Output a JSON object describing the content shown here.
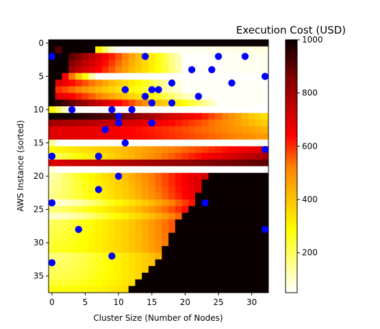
{
  "chart_data": {
    "type": "heatmap",
    "title": "Execution Cost (USD)",
    "xlabel": "Cluster Size (Number of Nodes)",
    "ylabel": "AWS Instance (sorted)",
    "x_range": [
      -0.5,
      32.5
    ],
    "y_range": [
      37.5,
      -0.5
    ],
    "n_cols": 33,
    "n_rows": 38,
    "x_ticks": [
      0,
      5,
      10,
      15,
      20,
      25,
      30
    ],
    "y_ticks": [
      0,
      5,
      10,
      15,
      20,
      25,
      30,
      35
    ],
    "colormap": "hot_r",
    "colorbar": {
      "min": 50,
      "max": 1000,
      "ticks": [
        200,
        400,
        600,
        800,
        1000
      ]
    },
    "grid": false,
    "rows": [
      {
        "start": 0,
        "end": 0,
        "vStart": 1000,
        "vEnd": 1000,
        "nan": [
          0,
          1,
          2,
          3,
          4,
          5,
          6,
          7,
          8,
          9
        ]
      },
      {
        "start": 0,
        "end": 10,
        "vStart": 1000,
        "vEnd": 120,
        "nan": [
          2,
          3,
          4,
          5,
          6
        ]
      },
      {
        "start": 3,
        "end": 20,
        "vStart": 900,
        "vEnd": 140,
        "nan": []
      },
      {
        "start": 3,
        "end": 20,
        "vStart": 850,
        "vEnd": 150,
        "nan": []
      },
      {
        "start": 3,
        "end": 20,
        "vStart": 800,
        "vEnd": 160,
        "nan": []
      },
      {
        "start": 2,
        "end": 8,
        "vStart": 650,
        "vEnd": 50,
        "nan": []
      },
      {
        "start": 1,
        "end": 20,
        "vStart": 700,
        "vEnd": 100,
        "nan": []
      },
      {
        "start": 1,
        "end": 20,
        "vStart": 600,
        "vEnd": 110,
        "nan": []
      },
      {
        "start": 1,
        "end": 22,
        "vStart": 700,
        "vEnd": 120,
        "nan": []
      },
      {
        "start": 0,
        "end": 25,
        "vStart": 1000,
        "vEnd": 140,
        "nan": []
      },
      {
        "start": 0,
        "end": 4,
        "vStart": 300,
        "vEnd": 50,
        "nan": []
      },
      {
        "start": 0,
        "end": 33,
        "vStart": 1000,
        "vEnd": 350,
        "nan": []
      },
      {
        "start": 0,
        "end": 33,
        "vStart": 800,
        "vEnd": 400,
        "nan": []
      },
      {
        "start": 0,
        "end": 33,
        "vStart": 700,
        "vEnd": 450,
        "nan": []
      },
      {
        "start": 0,
        "end": 33,
        "vStart": 700,
        "vEnd": 480,
        "nan": []
      },
      {
        "start": 0,
        "end": 2,
        "vStart": 180,
        "vEnd": 50,
        "nan": []
      },
      {
        "start": 0,
        "end": 33,
        "vStart": 300,
        "vEnd": 700,
        "nan": []
      },
      {
        "start": 0,
        "end": 33,
        "vStart": 200,
        "vEnd": 800,
        "nan": []
      },
      {
        "start": 0,
        "end": 33,
        "vStart": 700,
        "vEnd": 900,
        "nan": []
      },
      {
        "start": 0,
        "end": 2,
        "vStart": 100,
        "vEnd": 50,
        "nan": []
      },
      {
        "start": 0,
        "end": 33,
        "vStart": 160,
        "vEnd": 950,
        "nan": []
      },
      {
        "start": 0,
        "end": 33,
        "vStart": 170,
        "vEnd": 1000,
        "nan": []
      },
      {
        "start": 0,
        "end": 33,
        "vStart": 180,
        "vEnd": 1000,
        "nan": []
      },
      {
        "start": 0,
        "end": 33,
        "vStart": 190,
        "vEnd": 1000,
        "nan": []
      },
      {
        "start": 0,
        "end": 33,
        "vStart": 100,
        "vEnd": 1000,
        "nan": []
      },
      {
        "start": 0,
        "end": 33,
        "vStart": 200,
        "vEnd": 1000,
        "nan": []
      },
      {
        "start": 0,
        "end": 33,
        "vStart": 120,
        "vEnd": 1000,
        "nan": []
      },
      {
        "start": 0,
        "end": 33,
        "vStart": 220,
        "vEnd": 1000,
        "nan": []
      },
      {
        "start": 0,
        "end": 33,
        "vStart": 230,
        "vEnd": 1000,
        "nan": []
      },
      {
        "start": 0,
        "end": 33,
        "vStart": 240,
        "vEnd": 1000,
        "nan": []
      },
      {
        "start": 0,
        "end": 33,
        "vStart": 250,
        "vEnd": 1000,
        "nan": []
      },
      {
        "start": 0,
        "end": 33,
        "vStart": 260,
        "vEnd": 1000,
        "nan": []
      },
      {
        "start": 0,
        "end": 33,
        "vStart": 200,
        "vEnd": 1000,
        "nan": []
      },
      {
        "start": 0,
        "end": 33,
        "vStart": 210,
        "vEnd": 1000,
        "nan": []
      },
      {
        "start": 0,
        "end": 33,
        "vStart": 220,
        "vEnd": 1000,
        "nan": []
      },
      {
        "start": 0,
        "end": 33,
        "vStart": 230,
        "vEnd": 1000,
        "nan": []
      },
      {
        "start": 0,
        "end": 33,
        "vStart": 250,
        "vEnd": 1000,
        "nan": []
      },
      {
        "start": 0,
        "end": 33,
        "vStart": 280,
        "vEnd": 1000,
        "nan": []
      }
    ],
    "row_curve": {
      "11": 0.3,
      "12": 0.3,
      "13": 0.32,
      "14": 0.34,
      "16": 0.45,
      "17": 0.5,
      "18": 0.55,
      "20": 0.45,
      "21": 0.4,
      "22": 0.38,
      "23": 0.36,
      "24": 0.35,
      "25": 0.34,
      "26": 0.33,
      "27": 0.32,
      "28": 0.31,
      "29": 0.3,
      "30": 0.29,
      "31": 0.28,
      "32": 0.27,
      "33": 0.26,
      "34": 0.25,
      "35": 0.24,
      "36": 0.23,
      "37": 0.22
    },
    "row_cutoff": {
      "20": 24,
      "21": 23,
      "22": 23,
      "23": 22,
      "24": 22,
      "25": 21,
      "26": 20,
      "27": 19,
      "28": 19,
      "29": 18,
      "30": 18,
      "31": 17,
      "32": 17,
      "33": 16,
      "34": 15,
      "35": 14,
      "36": 13,
      "37": 12
    },
    "points": [
      {
        "x": 0,
        "y": 2
      },
      {
        "x": 14,
        "y": 2
      },
      {
        "x": 25,
        "y": 2
      },
      {
        "x": 29,
        "y": 2
      },
      {
        "x": 21,
        "y": 4
      },
      {
        "x": 24,
        "y": 4
      },
      {
        "x": 32,
        "y": 5
      },
      {
        "x": 18,
        "y": 6
      },
      {
        "x": 27,
        "y": 6
      },
      {
        "x": 11,
        "y": 7
      },
      {
        "x": 15,
        "y": 7
      },
      {
        "x": 16,
        "y": 7
      },
      {
        "x": 14,
        "y": 8
      },
      {
        "x": 22,
        "y": 8
      },
      {
        "x": 15,
        "y": 9
      },
      {
        "x": 18,
        "y": 9
      },
      {
        "x": 3,
        "y": 10
      },
      {
        "x": 9,
        "y": 10
      },
      {
        "x": 12,
        "y": 10
      },
      {
        "x": 10,
        "y": 11
      },
      {
        "x": 10,
        "y": 12
      },
      {
        "x": 15,
        "y": 12
      },
      {
        "x": 8,
        "y": 13
      },
      {
        "x": 11,
        "y": 15
      },
      {
        "x": 32,
        "y": 16
      },
      {
        "x": 0,
        "y": 17
      },
      {
        "x": 7,
        "y": 17
      },
      {
        "x": 10,
        "y": 20
      },
      {
        "x": 7,
        "y": 22
      },
      {
        "x": 0,
        "y": 24
      },
      {
        "x": 23,
        "y": 24
      },
      {
        "x": 4,
        "y": 28
      },
      {
        "x": 32,
        "y": 28
      },
      {
        "x": 9,
        "y": 32
      },
      {
        "x": 0,
        "y": 33
      }
    ],
    "point_color": "#0000ff"
  }
}
